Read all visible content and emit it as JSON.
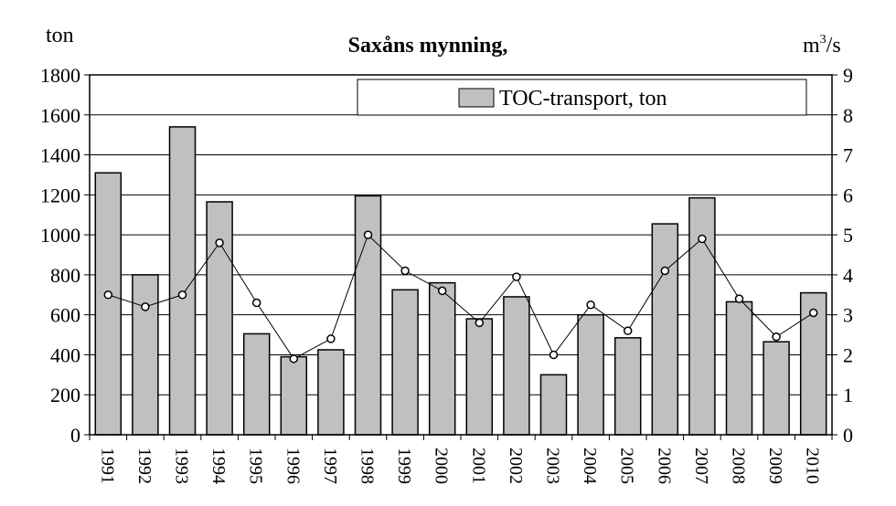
{
  "chart_data": {
    "type": "bar",
    "title": "Saxåns mynning,",
    "left_unit": "ton",
    "right_unit_base": "m",
    "right_unit_exp": "3",
    "right_unit_tail": "/s",
    "categories": [
      "1991",
      "1992",
      "1993",
      "1994",
      "1995",
      "1996",
      "1997",
      "1998",
      "1999",
      "2000",
      "2001",
      "2002",
      "2003",
      "2004",
      "2005",
      "2006",
      "2007",
      "2008",
      "2009",
      "2010"
    ],
    "series": [
      {
        "name": "TOC-transport, ton",
        "type": "bar",
        "axis": "left",
        "values": [
          1310,
          800,
          1540,
          1165,
          505,
          390,
          425,
          1195,
          725,
          760,
          580,
          690,
          300,
          600,
          485,
          1055,
          1185,
          665,
          465,
          710
        ]
      },
      {
        "type": "line",
        "axis": "right",
        "values": [
          3.5,
          3.2,
          3.5,
          4.8,
          3.3,
          1.9,
          2.4,
          5.0,
          4.1,
          3.6,
          2.8,
          3.95,
          2.0,
          3.25,
          2.6,
          4.1,
          4.9,
          3.4,
          2.45,
          3.05
        ]
      }
    ],
    "ylim": [
      0,
      1800
    ],
    "y_ticks": [
      0,
      200,
      400,
      600,
      800,
      1000,
      1200,
      1400,
      1600,
      1800
    ],
    "y2lim": [
      0,
      9
    ],
    "y2_ticks": [
      0,
      1,
      2,
      3,
      4,
      5,
      6,
      7,
      8,
      9
    ],
    "legend_position": "top-right",
    "grid": true,
    "colors": {
      "bar_fill": "#c0c0c0",
      "line": "#000000",
      "marker_fill": "#ffffff"
    }
  }
}
